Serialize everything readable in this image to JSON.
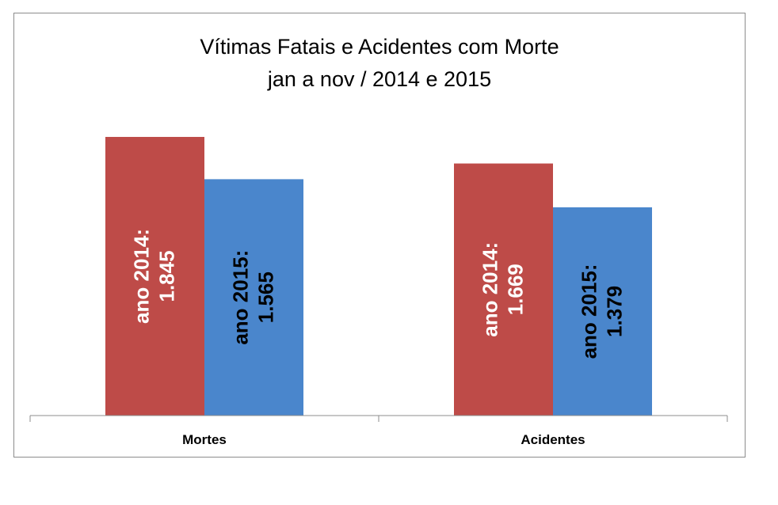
{
  "chart_data": {
    "type": "bar",
    "title_lines": [
      "Vítimas Fatais e Acidentes com Morte",
      "jan a nov / 2014 e 2015"
    ],
    "categories": [
      "Mortes",
      "Acidentes"
    ],
    "series": [
      {
        "name": "ano 2014",
        "color": "#BE4B48",
        "label_color": "#FFFFFF",
        "values": [
          1845,
          1669
        ],
        "data_labels": [
          [
            "ano 2014:",
            "1.845"
          ],
          [
            "ano 2014:",
            "1.669"
          ]
        ]
      },
      {
        "name": "ano 2015",
        "color": "#4A86CC",
        "label_color": "#000000",
        "values": [
          1565,
          1379
        ],
        "data_labels": [
          [
            "ano 2015:",
            "1.565"
          ],
          [
            "ano 2015:",
            "1.379"
          ]
        ]
      }
    ],
    "ylim": [
      0,
      2000
    ],
    "grid": false,
    "legend": "none"
  }
}
